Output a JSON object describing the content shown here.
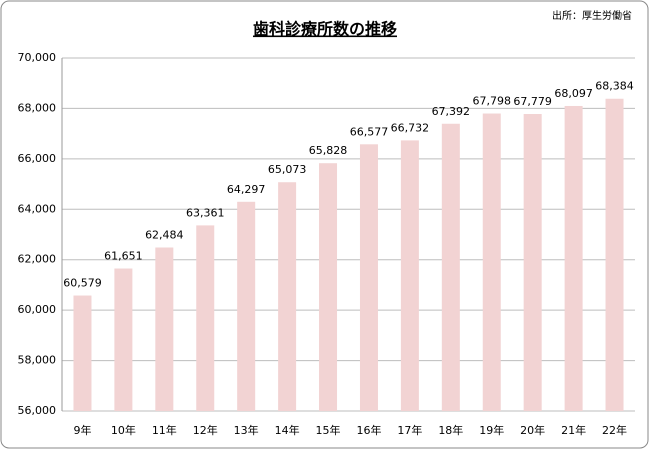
{
  "chart_data": {
    "type": "bar",
    "title": "歯科診療所数の推移",
    "source": "出所：厚生労働省",
    "categories": [
      "9年",
      "10年",
      "11年",
      "12年",
      "13年",
      "14年",
      "15年",
      "16年",
      "17年",
      "18年",
      "19年",
      "20年",
      "21年",
      "22年"
    ],
    "values": [
      60579,
      61651,
      62484,
      63361,
      64297,
      65073,
      65828,
      66577,
      66732,
      67392,
      67798,
      67779,
      68097,
      68384
    ],
    "value_labels": [
      "60,579",
      "61,651",
      "62,484",
      "63,361",
      "64,297",
      "65,073",
      "65,828",
      "66,577",
      "66,732",
      "67,392",
      "67,798",
      "67,779",
      "68,097",
      "68,384"
    ],
    "color": "#f2d3d3",
    "ylim": [
      56000,
      70000
    ],
    "yticks": [
      {
        "value": 56000,
        "label": "56,000"
      },
      {
        "value": 58000,
        "label": "58,000"
      },
      {
        "value": 60000,
        "label": "60,000"
      },
      {
        "value": 62000,
        "label": "62,000"
      },
      {
        "value": 64000,
        "label": "64,000"
      },
      {
        "value": 66000,
        "label": "66,000"
      },
      {
        "value": 68000,
        "label": "68,000"
      },
      {
        "value": 70000,
        "label": "70,000"
      }
    ],
    "grid": true
  }
}
